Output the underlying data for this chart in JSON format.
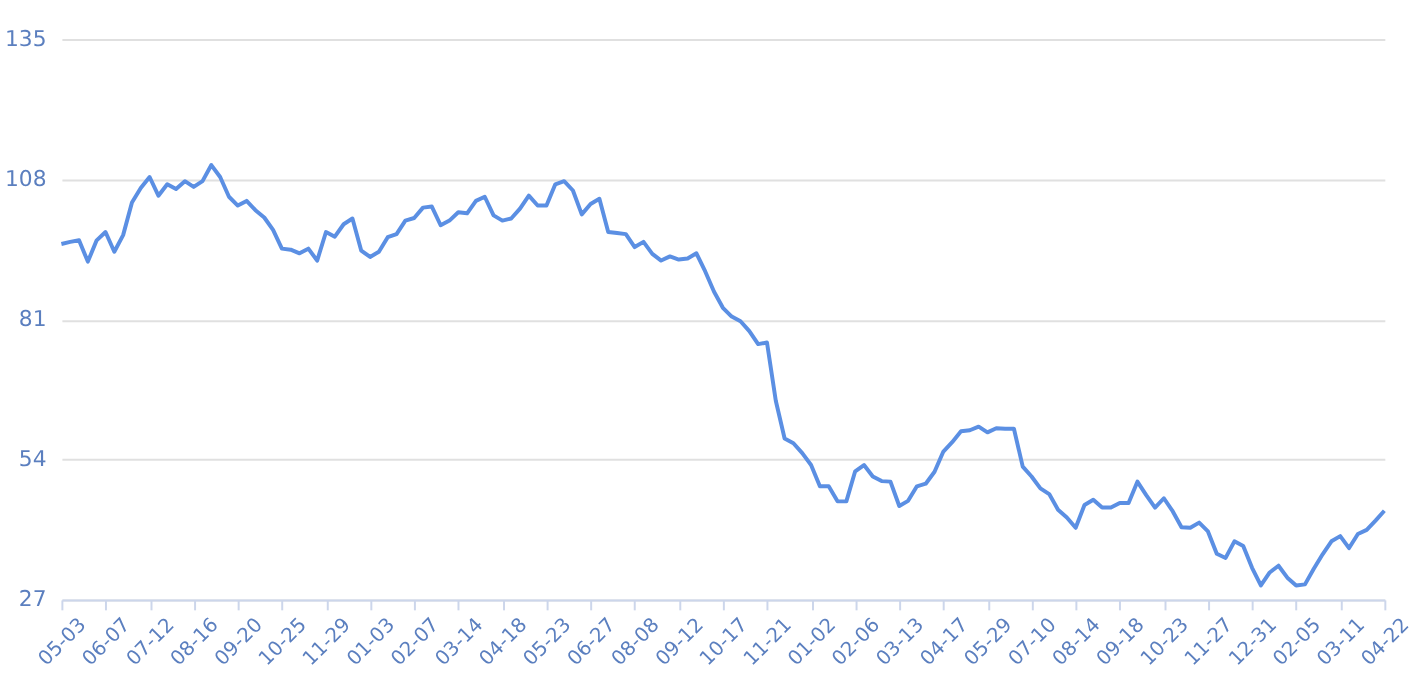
{
  "chart_data": {
    "type": "line",
    "categories": [
      "05-03",
      null,
      null,
      null,
      null,
      "06-07",
      null,
      null,
      null,
      null,
      "07-12",
      null,
      null,
      null,
      null,
      "08-16",
      null,
      null,
      null,
      null,
      "09-20",
      null,
      null,
      null,
      null,
      "10-25",
      null,
      null,
      null,
      null,
      "11-29",
      null,
      null,
      null,
      null,
      "01-03",
      null,
      null,
      null,
      null,
      "02-07",
      null,
      null,
      null,
      null,
      "03-14",
      null,
      null,
      null,
      null,
      "04-18",
      null,
      null,
      null,
      null,
      "05-23",
      null,
      null,
      null,
      null,
      "06-27",
      null,
      null,
      null,
      null,
      "08-08",
      null,
      null,
      null,
      null,
      "09-12",
      null,
      null,
      null,
      null,
      "10-17",
      null,
      null,
      null,
      null,
      "11-21",
      null,
      null,
      null,
      null,
      "01-02",
      null,
      null,
      null,
      null,
      "02-06",
      null,
      null,
      null,
      null,
      "03-13",
      null,
      null,
      null,
      null,
      "04-17",
      null,
      null,
      null,
      null,
      "05-29",
      null,
      null,
      null,
      null,
      "07-10",
      null,
      null,
      null,
      null,
      "08-14",
      null,
      null,
      null,
      null,
      "09-18",
      null,
      null,
      null,
      null,
      "10-23",
      null,
      null,
      null,
      null,
      "11-27",
      null,
      null,
      null,
      null,
      "12-31",
      null,
      null,
      null,
      null,
      "02-05",
      null,
      null,
      null,
      null,
      "03-11",
      null,
      null,
      null,
      null,
      "04-22"
    ],
    "series": [
      {
        "color": "#5b8fe3",
        "values": [
          95.5,
          95.9,
          96.2,
          92.1,
          96.2,
          97.8,
          94,
          97.2,
          103.5,
          106.3,
          108.4,
          104.8,
          107,
          106.1,
          107.6,
          106.5,
          107.6,
          110.7,
          108.4,
          104.6,
          102.9,
          103.8,
          102,
          100.6,
          98.2,
          94.6,
          94.4,
          93.7,
          94.6,
          92.3,
          97.8,
          96.9,
          99.3,
          100.4,
          94.2,
          93,
          94,
          96.8,
          97.4,
          100,
          100.5,
          102.5,
          102.7,
          99.1,
          100,
          101.6,
          101.4,
          103.8,
          104.6,
          101,
          100,
          100.4,
          102.3,
          104.8,
          102.9,
          102.9,
          107,
          107.6,
          105.8,
          101.2,
          103.2,
          104.2,
          97.8,
          97.6,
          97.4,
          94.9,
          95.9,
          93.6,
          92.3,
          93.1,
          92.5,
          92.7,
          93.7,
          90.2,
          86.3,
          83.2,
          81.5,
          80.6,
          78.7,
          76.2,
          76.5,
          65.3,
          58,
          57.1,
          55.2,
          52.9,
          48.8,
          48.8,
          45.9,
          45.9,
          51.7,
          52.9,
          50.7,
          49.8,
          49.7,
          45,
          46,
          48.8,
          49.3,
          51.6,
          55.5,
          57.3,
          59.4,
          59.6,
          60.3,
          59.2,
          60,
          59.9,
          59.9,
          52.6,
          50.7,
          48.4,
          47.3,
          44.3,
          42.8,
          40.8,
          45.2,
          46.2,
          44.7,
          44.7,
          45.6,
          45.6,
          49.7,
          47.1,
          44.7,
          46.5,
          44,
          40.9,
          40.8,
          41.8,
          40.1,
          35.8,
          35,
          38.2,
          37.3,
          33.1,
          29.7,
          32.2,
          33.5,
          31.2,
          29.7,
          29.9,
          32.9,
          35.7,
          38.2,
          39.2,
          36.9,
          39.6,
          40.4,
          42.2,
          44.1
        ]
      }
    ],
    "ylim": [
      27,
      135
    ],
    "yticks": [
      27,
      54,
      81,
      108,
      135
    ],
    "grid": "y",
    "marker": "none",
    "line_style": "solid"
  }
}
